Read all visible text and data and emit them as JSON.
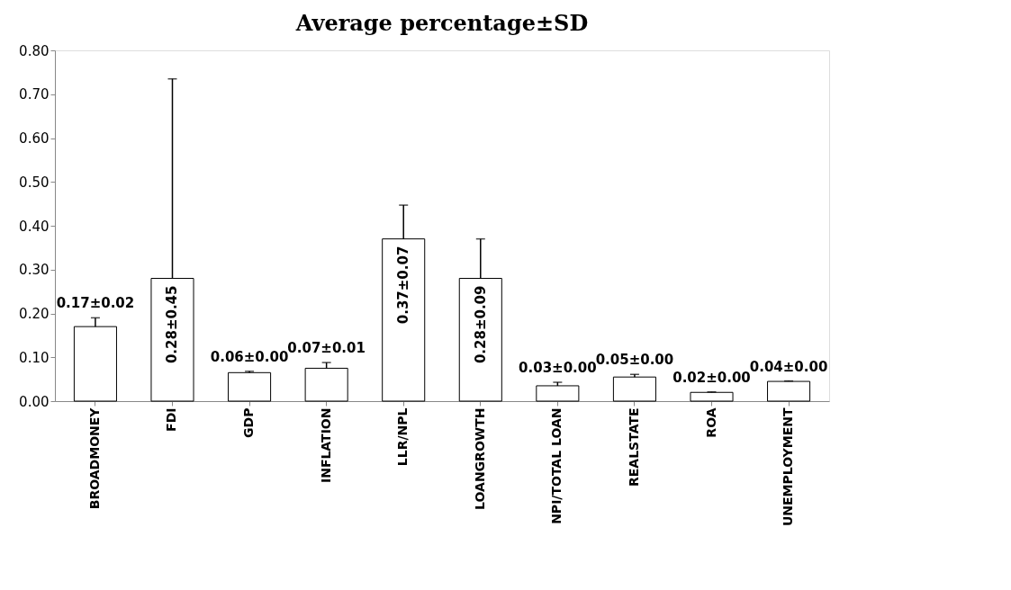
{
  "chart_data": {
    "type": "bar",
    "title": "Average percentage±SD",
    "categories": [
      "BROADMONEY",
      "FDI",
      "GDP",
      "INFLATION",
      "LLR/NPL",
      "LOANGROWTH",
      "NPI/TOTAL LOAN",
      "REALSTATE",
      "ROA",
      "UNEMPLOYMENT"
    ],
    "values": [
      0.17,
      0.28,
      0.065,
      0.075,
      0.37,
      0.28,
      0.035,
      0.055,
      0.02,
      0.045
    ],
    "errors": [
      [
        0.17,
        0.19
      ],
      [
        0.28,
        0.735
      ],
      [
        0.065,
        0.068
      ],
      [
        0.075,
        0.088
      ],
      [
        0.37,
        0.447
      ],
      [
        0.28,
        0.37
      ],
      [
        0.035,
        0.043
      ],
      [
        0.055,
        0.061
      ],
      [
        0.02,
        0.021
      ],
      [
        0.045,
        0.046
      ]
    ],
    "value_labels": [
      "0.17±0.02",
      "0.28±0.45",
      "0.06±0.00",
      "0.07±0.01",
      "0.37±0.07",
      "0.28±0.09",
      "0.03±0.00",
      "0.05±0.00",
      "0.02±0.00",
      "0.04±0.00"
    ],
    "color": "#ffffff",
    "ylim": [
      0,
      0.8
    ],
    "yticks": [
      {
        "value": 0,
        "label": "0.00"
      },
      {
        "value": 0.1,
        "label": "0.10"
      },
      {
        "value": 0.2,
        "label": "0.20"
      },
      {
        "value": 0.3,
        "label": "0.30"
      },
      {
        "value": 0.4,
        "label": "0.40"
      },
      {
        "value": 0.5,
        "label": "0.50"
      },
      {
        "value": 0.6,
        "label": "0.60"
      },
      {
        "value": 0.7,
        "label": "0.70"
      },
      {
        "value": 0.8,
        "label": "0.80"
      }
    ],
    "grid": false
  }
}
